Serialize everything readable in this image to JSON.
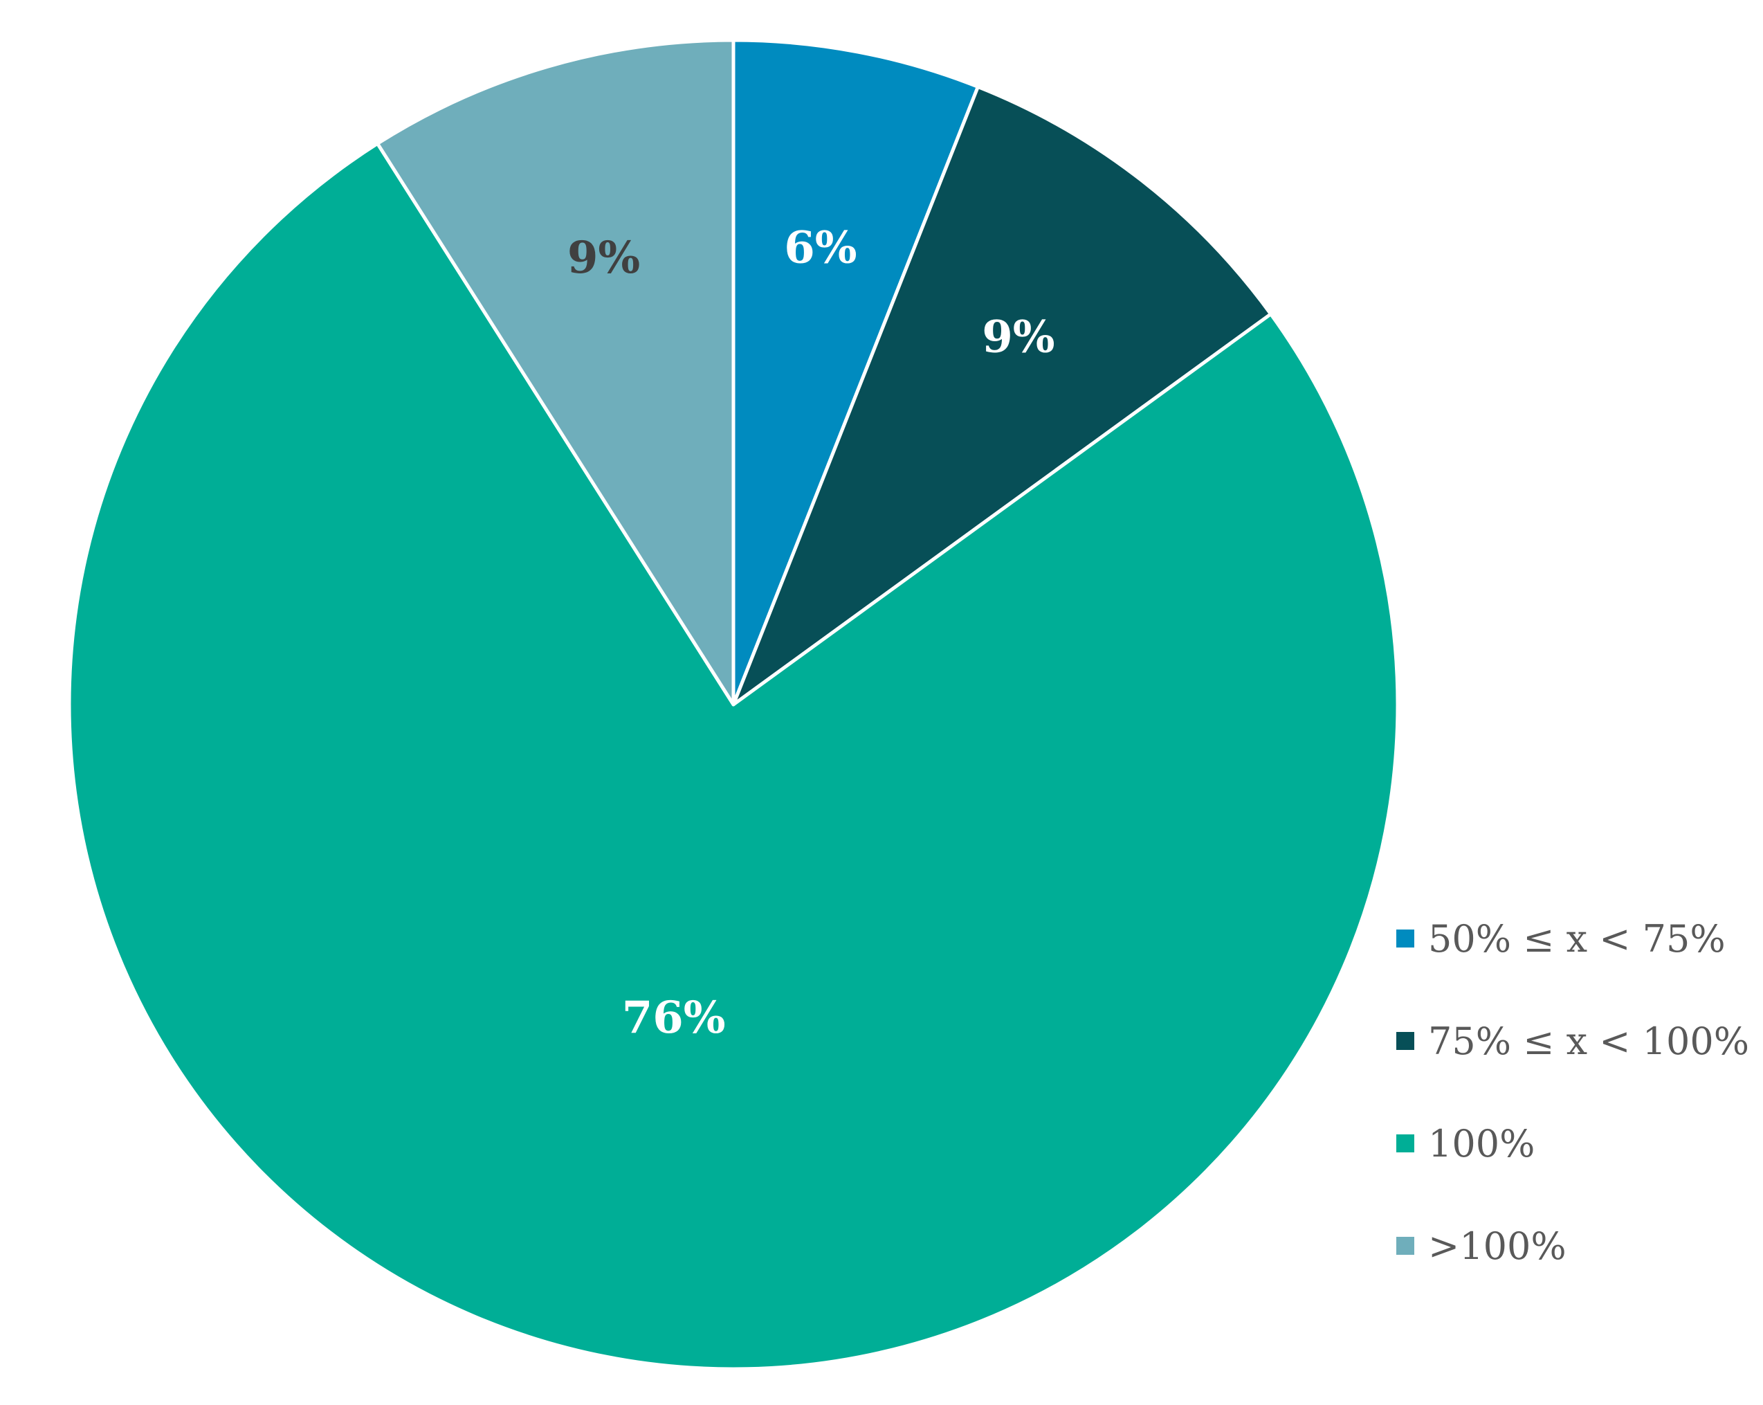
{
  "chart_data": {
    "type": "pie",
    "title": "",
    "start_angle_deg": 0,
    "direction": "clockwise",
    "slices": [
      {
        "label": "50% ≤ x < 75%",
        "value": 6,
        "display": "6%",
        "color": "#008BBF",
        "label_color": "#FFFFFF"
      },
      {
        "label": "75% ≤ x < 100%",
        "value": 9,
        "display": "9%",
        "color": "#074F57",
        "label_color": "#FFFFFF"
      },
      {
        "label": "100%",
        "value": 76,
        "display": "76%",
        "color": "#00AE96",
        "label_color": "#FFFFFF"
      },
      {
        "label": ">100%",
        "value": 9,
        "display": "9%",
        "color": "#6FAEBB",
        "label_color": "#404040"
      }
    ],
    "legend": {
      "position": "bottom-right",
      "items": [
        "50% ≤ x < 75%",
        "75% ≤ x < 100%",
        "100%",
        ">100%"
      ]
    }
  }
}
